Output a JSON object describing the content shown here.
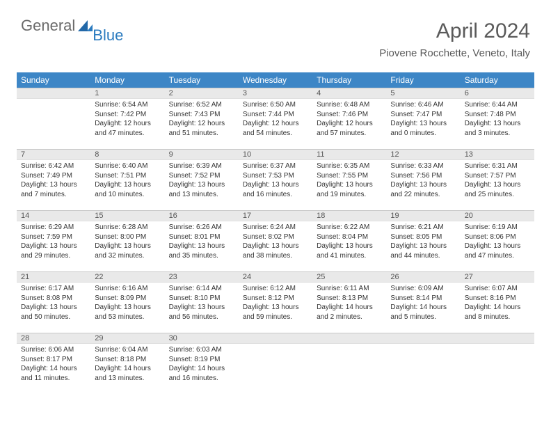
{
  "logo": {
    "general": "General",
    "blue": "Blue"
  },
  "header": {
    "month_title": "April 2024",
    "location": "Piovene Rocchette, Veneto, Italy"
  },
  "colors": {
    "header_bg": "#3d86c6",
    "daynum_bg": "#e9e9e9",
    "text": "#333333",
    "logo_gray": "#6a6a6a",
    "logo_blue": "#2b7bbf"
  },
  "weekdays": [
    "Sunday",
    "Monday",
    "Tuesday",
    "Wednesday",
    "Thursday",
    "Friday",
    "Saturday"
  ],
  "weeks": [
    [
      {
        "num": "",
        "lines": []
      },
      {
        "num": "1",
        "lines": [
          "Sunrise: 6:54 AM",
          "Sunset: 7:42 PM",
          "Daylight: 12 hours",
          "and 47 minutes."
        ]
      },
      {
        "num": "2",
        "lines": [
          "Sunrise: 6:52 AM",
          "Sunset: 7:43 PM",
          "Daylight: 12 hours",
          "and 51 minutes."
        ]
      },
      {
        "num": "3",
        "lines": [
          "Sunrise: 6:50 AM",
          "Sunset: 7:44 PM",
          "Daylight: 12 hours",
          "and 54 minutes."
        ]
      },
      {
        "num": "4",
        "lines": [
          "Sunrise: 6:48 AM",
          "Sunset: 7:46 PM",
          "Daylight: 12 hours",
          "and 57 minutes."
        ]
      },
      {
        "num": "5",
        "lines": [
          "Sunrise: 6:46 AM",
          "Sunset: 7:47 PM",
          "Daylight: 13 hours",
          "and 0 minutes."
        ]
      },
      {
        "num": "6",
        "lines": [
          "Sunrise: 6:44 AM",
          "Sunset: 7:48 PM",
          "Daylight: 13 hours",
          "and 3 minutes."
        ]
      }
    ],
    [
      {
        "num": "7",
        "lines": [
          "Sunrise: 6:42 AM",
          "Sunset: 7:49 PM",
          "Daylight: 13 hours",
          "and 7 minutes."
        ]
      },
      {
        "num": "8",
        "lines": [
          "Sunrise: 6:40 AM",
          "Sunset: 7:51 PM",
          "Daylight: 13 hours",
          "and 10 minutes."
        ]
      },
      {
        "num": "9",
        "lines": [
          "Sunrise: 6:39 AM",
          "Sunset: 7:52 PM",
          "Daylight: 13 hours",
          "and 13 minutes."
        ]
      },
      {
        "num": "10",
        "lines": [
          "Sunrise: 6:37 AM",
          "Sunset: 7:53 PM",
          "Daylight: 13 hours",
          "and 16 minutes."
        ]
      },
      {
        "num": "11",
        "lines": [
          "Sunrise: 6:35 AM",
          "Sunset: 7:55 PM",
          "Daylight: 13 hours",
          "and 19 minutes."
        ]
      },
      {
        "num": "12",
        "lines": [
          "Sunrise: 6:33 AM",
          "Sunset: 7:56 PM",
          "Daylight: 13 hours",
          "and 22 minutes."
        ]
      },
      {
        "num": "13",
        "lines": [
          "Sunrise: 6:31 AM",
          "Sunset: 7:57 PM",
          "Daylight: 13 hours",
          "and 25 minutes."
        ]
      }
    ],
    [
      {
        "num": "14",
        "lines": [
          "Sunrise: 6:29 AM",
          "Sunset: 7:59 PM",
          "Daylight: 13 hours",
          "and 29 minutes."
        ]
      },
      {
        "num": "15",
        "lines": [
          "Sunrise: 6:28 AM",
          "Sunset: 8:00 PM",
          "Daylight: 13 hours",
          "and 32 minutes."
        ]
      },
      {
        "num": "16",
        "lines": [
          "Sunrise: 6:26 AM",
          "Sunset: 8:01 PM",
          "Daylight: 13 hours",
          "and 35 minutes."
        ]
      },
      {
        "num": "17",
        "lines": [
          "Sunrise: 6:24 AM",
          "Sunset: 8:02 PM",
          "Daylight: 13 hours",
          "and 38 minutes."
        ]
      },
      {
        "num": "18",
        "lines": [
          "Sunrise: 6:22 AM",
          "Sunset: 8:04 PM",
          "Daylight: 13 hours",
          "and 41 minutes."
        ]
      },
      {
        "num": "19",
        "lines": [
          "Sunrise: 6:21 AM",
          "Sunset: 8:05 PM",
          "Daylight: 13 hours",
          "and 44 minutes."
        ]
      },
      {
        "num": "20",
        "lines": [
          "Sunrise: 6:19 AM",
          "Sunset: 8:06 PM",
          "Daylight: 13 hours",
          "and 47 minutes."
        ]
      }
    ],
    [
      {
        "num": "21",
        "lines": [
          "Sunrise: 6:17 AM",
          "Sunset: 8:08 PM",
          "Daylight: 13 hours",
          "and 50 minutes."
        ]
      },
      {
        "num": "22",
        "lines": [
          "Sunrise: 6:16 AM",
          "Sunset: 8:09 PM",
          "Daylight: 13 hours",
          "and 53 minutes."
        ]
      },
      {
        "num": "23",
        "lines": [
          "Sunrise: 6:14 AM",
          "Sunset: 8:10 PM",
          "Daylight: 13 hours",
          "and 56 minutes."
        ]
      },
      {
        "num": "24",
        "lines": [
          "Sunrise: 6:12 AM",
          "Sunset: 8:12 PM",
          "Daylight: 13 hours",
          "and 59 minutes."
        ]
      },
      {
        "num": "25",
        "lines": [
          "Sunrise: 6:11 AM",
          "Sunset: 8:13 PM",
          "Daylight: 14 hours",
          "and 2 minutes."
        ]
      },
      {
        "num": "26",
        "lines": [
          "Sunrise: 6:09 AM",
          "Sunset: 8:14 PM",
          "Daylight: 14 hours",
          "and 5 minutes."
        ]
      },
      {
        "num": "27",
        "lines": [
          "Sunrise: 6:07 AM",
          "Sunset: 8:16 PM",
          "Daylight: 14 hours",
          "and 8 minutes."
        ]
      }
    ],
    [
      {
        "num": "28",
        "lines": [
          "Sunrise: 6:06 AM",
          "Sunset: 8:17 PM",
          "Daylight: 14 hours",
          "and 11 minutes."
        ]
      },
      {
        "num": "29",
        "lines": [
          "Sunrise: 6:04 AM",
          "Sunset: 8:18 PM",
          "Daylight: 14 hours",
          "and 13 minutes."
        ]
      },
      {
        "num": "30",
        "lines": [
          "Sunrise: 6:03 AM",
          "Sunset: 8:19 PM",
          "Daylight: 14 hours",
          "and 16 minutes."
        ]
      },
      {
        "num": "",
        "lines": []
      },
      {
        "num": "",
        "lines": []
      },
      {
        "num": "",
        "lines": []
      },
      {
        "num": "",
        "lines": []
      }
    ]
  ]
}
